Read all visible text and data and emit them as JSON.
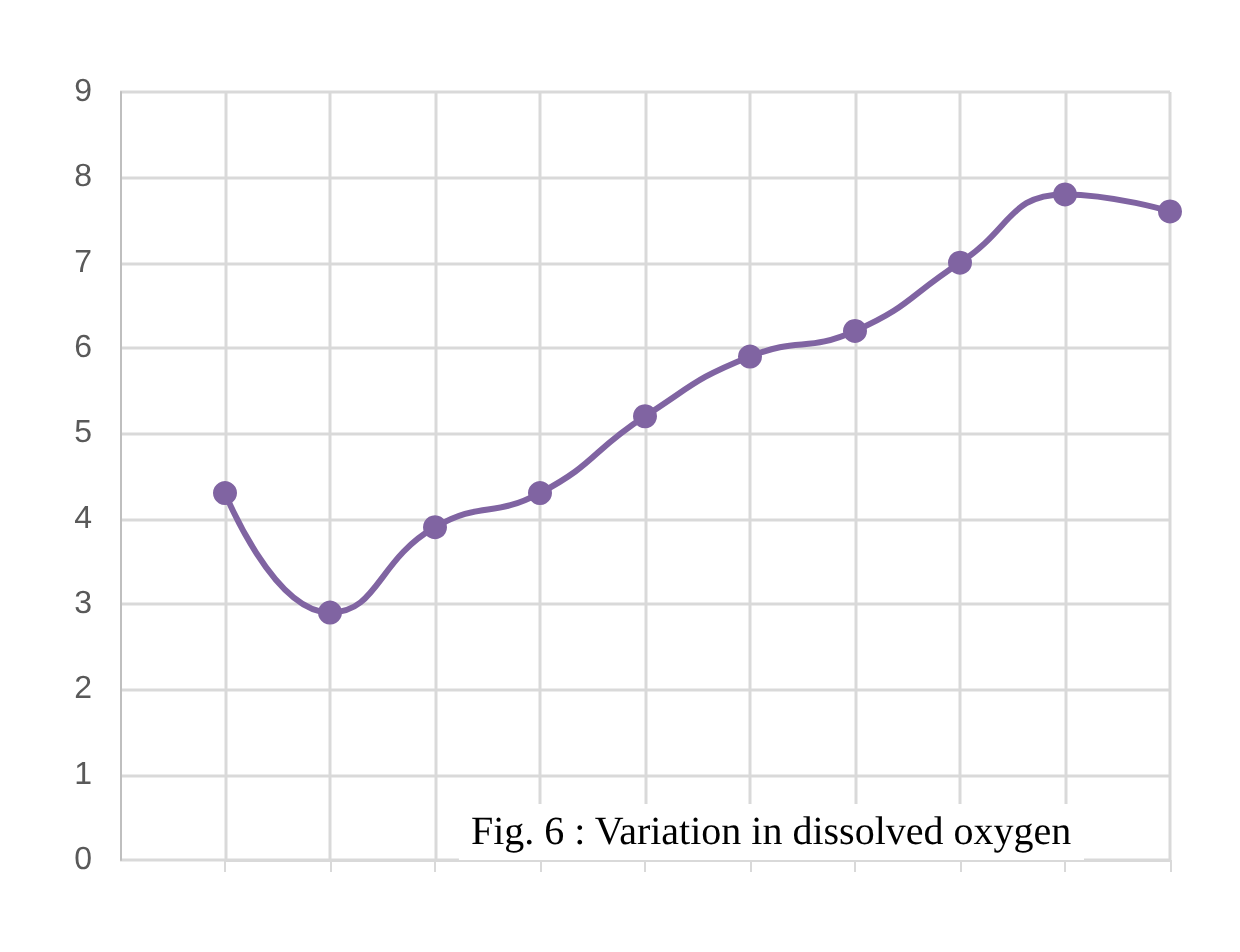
{
  "chart_data": {
    "type": "line",
    "categories": [
      null,
      null,
      null,
      null,
      null,
      null,
      null,
      null,
      null,
      null
    ],
    "series": [
      {
        "color": "#8064a2",
        "values": [
          4.3,
          2.9,
          3.9,
          4.3,
          5.2,
          5.9,
          6.2,
          7.0,
          7.8,
          7.6
        ]
      }
    ],
    "ylim": [
      0,
      9
    ],
    "yticks": [
      0,
      1,
      2,
      3,
      4,
      5,
      6,
      7,
      8,
      9
    ],
    "grid": true,
    "marker": "circle",
    "line_style": "solid",
    "annotations": [
      "Fig. 6 : Variation in dissolved oxygen"
    ]
  }
}
